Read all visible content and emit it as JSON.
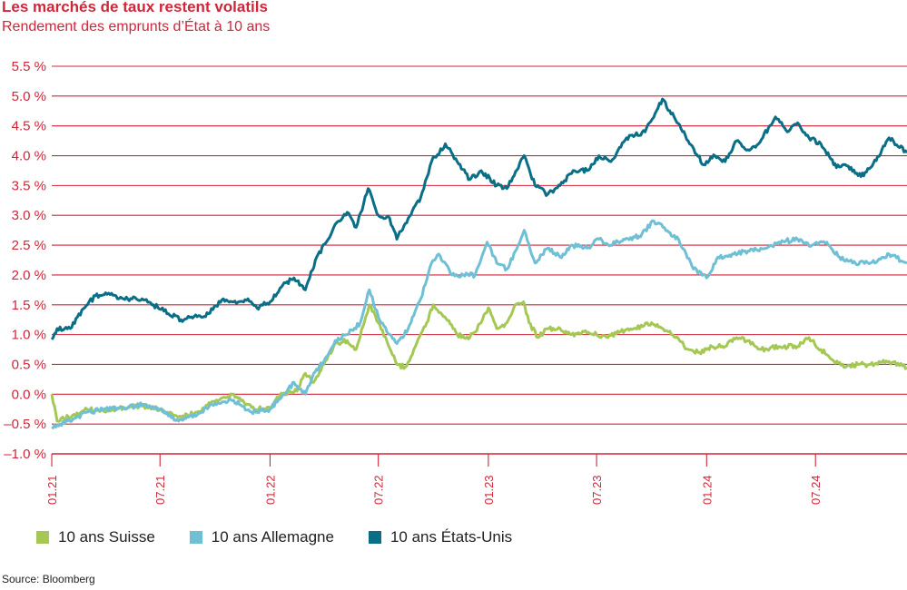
{
  "header": {
    "title": "Les marchés de taux restent volatils",
    "subtitle": "Rendement des emprunts d’État à 10 ans"
  },
  "footer": {
    "source": "Source: Bloomberg"
  },
  "colors": {
    "grid": "#d0263a",
    "axis_text": "#d0263a",
    "swiss": "#a5c854",
    "germany": "#6fc0d4",
    "us": "#0a6f86"
  },
  "chart_data": {
    "type": "line",
    "title": "Les marchés de taux restent volatils",
    "subtitle": "Rendement des emprunts d’État à 10 ans",
    "xlabel": "",
    "ylabel": "",
    "ylim": [
      -1.0,
      5.5
    ],
    "yticks": [
      5.5,
      5.0,
      4.5,
      4.0,
      3.5,
      3.0,
      2.5,
      2.0,
      1.5,
      1.0,
      0.5,
      0.0,
      -0.5,
      -1.0
    ],
    "ytick_labels": [
      "5.5 %",
      "5.0 %",
      "4.5 %",
      "4.0 %",
      "3.5 %",
      "3.0 %",
      "2.5 %",
      "2.0 %",
      "1.5 %",
      "1.0 %",
      "0.5 %",
      "0.0 %",
      "–0.5 %",
      "–1.0 %"
    ],
    "xlim": [
      "2021-01",
      "2024-12"
    ],
    "xticks": [
      "2021-01",
      "2021-07",
      "2022-01",
      "2022-07",
      "2023-01",
      "2023-07",
      "2024-01",
      "2024-07"
    ],
    "xtick_labels": [
      "01.21",
      "07.21",
      "01.22",
      "07.22",
      "01.23",
      "07.23",
      "01.24",
      "07.24"
    ],
    "grid": true,
    "legend_position": "bottom-left",
    "series": [
      {
        "name": "10 ans Suisse",
        "color": "#a5c854",
        "points": [
          [
            "2021-01-01",
            0.0
          ],
          [
            "2021-01-10",
            -0.45
          ],
          [
            "2021-02-05",
            -0.35
          ],
          [
            "2021-03-01",
            -0.25
          ],
          [
            "2021-04-01",
            -0.3
          ],
          [
            "2021-05-01",
            -0.22
          ],
          [
            "2021-06-01",
            -0.2
          ],
          [
            "2021-07-01",
            -0.25
          ],
          [
            "2021-08-01",
            -0.38
          ],
          [
            "2021-09-01",
            -0.3
          ],
          [
            "2021-10-01",
            -0.12
          ],
          [
            "2021-11-01",
            0.0
          ],
          [
            "2021-12-01",
            -0.22
          ],
          [
            "2022-01-01",
            -0.25
          ],
          [
            "2022-01-20",
            0.02
          ],
          [
            "2022-02-15",
            0.05
          ],
          [
            "2022-03-01",
            0.35
          ],
          [
            "2022-03-15",
            0.2
          ],
          [
            "2022-04-01",
            0.5
          ],
          [
            "2022-04-20",
            0.85
          ],
          [
            "2022-05-10",
            0.9
          ],
          [
            "2022-05-25",
            0.75
          ],
          [
            "2022-06-10",
            1.3
          ],
          [
            "2022-06-16",
            1.5
          ],
          [
            "2022-07-01",
            1.2
          ],
          [
            "2022-07-15",
            0.9
          ],
          [
            "2022-08-01",
            0.5
          ],
          [
            "2022-08-15",
            0.45
          ],
          [
            "2022-09-01",
            0.8
          ],
          [
            "2022-09-20",
            1.2
          ],
          [
            "2022-10-01",
            1.5
          ],
          [
            "2022-10-20",
            1.3
          ],
          [
            "2022-11-10",
            1.0
          ],
          [
            "2022-12-01",
            0.95
          ],
          [
            "2022-12-20",
            1.2
          ],
          [
            "2023-01-01",
            1.45
          ],
          [
            "2023-01-15",
            1.1
          ],
          [
            "2023-02-01",
            1.2
          ],
          [
            "2023-02-15",
            1.5
          ],
          [
            "2023-03-01",
            1.55
          ],
          [
            "2023-03-10",
            1.2
          ],
          [
            "2023-03-25",
            0.95
          ],
          [
            "2023-04-10",
            1.1
          ],
          [
            "2023-05-01",
            1.1
          ],
          [
            "2023-05-20",
            1.0
          ],
          [
            "2023-06-10",
            1.05
          ],
          [
            "2023-07-01",
            1.0
          ],
          [
            "2023-07-20",
            0.95
          ],
          [
            "2023-08-10",
            1.05
          ],
          [
            "2023-09-01",
            1.1
          ],
          [
            "2023-10-01",
            1.2
          ],
          [
            "2023-10-20",
            1.1
          ],
          [
            "2023-11-10",
            0.95
          ],
          [
            "2023-12-01",
            0.75
          ],
          [
            "2023-12-20",
            0.7
          ],
          [
            "2024-01-10",
            0.8
          ],
          [
            "2024-02-01",
            0.8
          ],
          [
            "2024-02-20",
            0.95
          ],
          [
            "2024-03-10",
            0.9
          ],
          [
            "2024-04-01",
            0.75
          ],
          [
            "2024-05-01",
            0.8
          ],
          [
            "2024-06-01",
            0.8
          ],
          [
            "2024-06-20",
            0.95
          ],
          [
            "2024-07-10",
            0.75
          ],
          [
            "2024-08-01",
            0.55
          ],
          [
            "2024-08-20",
            0.45
          ],
          [
            "2024-09-10",
            0.5
          ],
          [
            "2024-10-01",
            0.5
          ],
          [
            "2024-11-01",
            0.55
          ],
          [
            "2024-12-01",
            0.45
          ]
        ]
      },
      {
        "name": "10 ans Allemagne",
        "color": "#6fc0d4",
        "points": [
          [
            "2021-01-01",
            -0.55
          ],
          [
            "2021-01-15",
            -0.5
          ],
          [
            "2021-02-10",
            -0.4
          ],
          [
            "2021-03-01",
            -0.3
          ],
          [
            "2021-04-01",
            -0.25
          ],
          [
            "2021-05-01",
            -0.22
          ],
          [
            "2021-06-01",
            -0.18
          ],
          [
            "2021-07-01",
            -0.25
          ],
          [
            "2021-08-01",
            -0.45
          ],
          [
            "2021-09-01",
            -0.35
          ],
          [
            "2021-10-01",
            -0.15
          ],
          [
            "2021-11-01",
            -0.1
          ],
          [
            "2021-12-01",
            -0.3
          ],
          [
            "2022-01-01",
            -0.25
          ],
          [
            "2022-01-20",
            -0.05
          ],
          [
            "2022-02-10",
            0.2
          ],
          [
            "2022-03-01",
            0.0
          ],
          [
            "2022-03-15",
            0.35
          ],
          [
            "2022-04-01",
            0.55
          ],
          [
            "2022-04-20",
            0.9
          ],
          [
            "2022-05-10",
            1.0
          ],
          [
            "2022-06-01",
            1.2
          ],
          [
            "2022-06-16",
            1.75
          ],
          [
            "2022-07-01",
            1.3
          ],
          [
            "2022-07-20",
            1.0
          ],
          [
            "2022-08-01",
            0.85
          ],
          [
            "2022-08-20",
            1.1
          ],
          [
            "2022-09-10",
            1.6
          ],
          [
            "2022-09-28",
            2.2
          ],
          [
            "2022-10-10",
            2.35
          ],
          [
            "2022-11-01",
            2.0
          ],
          [
            "2022-11-20",
            2.0
          ],
          [
            "2022-12-10",
            2.0
          ],
          [
            "2022-12-30",
            2.55
          ],
          [
            "2023-01-15",
            2.2
          ],
          [
            "2023-02-01",
            2.1
          ],
          [
            "2023-02-20",
            2.5
          ],
          [
            "2023-03-02",
            2.75
          ],
          [
            "2023-03-20",
            2.2
          ],
          [
            "2023-04-10",
            2.45
          ],
          [
            "2023-05-01",
            2.3
          ],
          [
            "2023-05-20",
            2.5
          ],
          [
            "2023-06-15",
            2.45
          ],
          [
            "2023-07-05",
            2.6
          ],
          [
            "2023-07-25",
            2.5
          ],
          [
            "2023-08-15",
            2.6
          ],
          [
            "2023-09-10",
            2.65
          ],
          [
            "2023-10-05",
            2.9
          ],
          [
            "2023-10-20",
            2.8
          ],
          [
            "2023-11-15",
            2.6
          ],
          [
            "2023-12-10",
            2.1
          ],
          [
            "2024-01-01",
            1.95
          ],
          [
            "2024-01-20",
            2.3
          ],
          [
            "2024-02-15",
            2.35
          ],
          [
            "2024-03-10",
            2.4
          ],
          [
            "2024-04-10",
            2.45
          ],
          [
            "2024-05-01",
            2.55
          ],
          [
            "2024-06-01",
            2.6
          ],
          [
            "2024-06-25",
            2.5
          ],
          [
            "2024-07-20",
            2.55
          ],
          [
            "2024-08-10",
            2.3
          ],
          [
            "2024-09-01",
            2.2
          ],
          [
            "2024-10-01",
            2.2
          ],
          [
            "2024-11-01",
            2.35
          ],
          [
            "2024-12-01",
            2.2
          ]
        ]
      },
      {
        "name": "10 ans États-Unis",
        "color": "#0a6f86",
        "points": [
          [
            "2021-01-01",
            0.92
          ],
          [
            "2021-01-10",
            1.1
          ],
          [
            "2021-02-01",
            1.1
          ],
          [
            "2021-02-25",
            1.45
          ],
          [
            "2021-03-15",
            1.65
          ],
          [
            "2021-04-01",
            1.7
          ],
          [
            "2021-05-01",
            1.6
          ],
          [
            "2021-06-01",
            1.6
          ],
          [
            "2021-06-20",
            1.5
          ],
          [
            "2021-07-15",
            1.35
          ],
          [
            "2021-08-05",
            1.25
          ],
          [
            "2021-09-01",
            1.3
          ],
          [
            "2021-09-20",
            1.35
          ],
          [
            "2021-10-15",
            1.6
          ],
          [
            "2021-11-01",
            1.55
          ],
          [
            "2021-11-25",
            1.6
          ],
          [
            "2021-12-10",
            1.45
          ],
          [
            "2022-01-01",
            1.55
          ],
          [
            "2022-01-20",
            1.8
          ],
          [
            "2022-02-10",
            1.95
          ],
          [
            "2022-03-01",
            1.75
          ],
          [
            "2022-03-20",
            2.3
          ],
          [
            "2022-04-05",
            2.55
          ],
          [
            "2022-04-25",
            2.9
          ],
          [
            "2022-05-10",
            3.05
          ],
          [
            "2022-05-25",
            2.8
          ],
          [
            "2022-06-14",
            3.45
          ],
          [
            "2022-07-01",
            3.0
          ],
          [
            "2022-07-20",
            2.95
          ],
          [
            "2022-08-01",
            2.6
          ],
          [
            "2022-08-20",
            2.95
          ],
          [
            "2022-09-10",
            3.3
          ],
          [
            "2022-09-28",
            3.9
          ],
          [
            "2022-10-21",
            4.2
          ],
          [
            "2022-11-10",
            3.9
          ],
          [
            "2022-12-01",
            3.6
          ],
          [
            "2022-12-20",
            3.75
          ],
          [
            "2023-01-15",
            3.5
          ],
          [
            "2023-02-01",
            3.45
          ],
          [
            "2023-03-02",
            4.0
          ],
          [
            "2023-03-20",
            3.5
          ],
          [
            "2023-04-10",
            3.35
          ],
          [
            "2023-05-01",
            3.5
          ],
          [
            "2023-05-25",
            3.75
          ],
          [
            "2023-06-15",
            3.75
          ],
          [
            "2023-07-05",
            4.0
          ],
          [
            "2023-07-25",
            3.9
          ],
          [
            "2023-08-20",
            4.3
          ],
          [
            "2023-09-20",
            4.4
          ],
          [
            "2023-10-19",
            4.95
          ],
          [
            "2023-11-10",
            4.6
          ],
          [
            "2023-12-01",
            4.25
          ],
          [
            "2023-12-27",
            3.85
          ],
          [
            "2024-01-15",
            4.0
          ],
          [
            "2024-02-01",
            3.9
          ],
          [
            "2024-02-20",
            4.25
          ],
          [
            "2024-03-10",
            4.1
          ],
          [
            "2024-03-28",
            4.2
          ],
          [
            "2024-04-25",
            4.65
          ],
          [
            "2024-05-15",
            4.4
          ],
          [
            "2024-06-01",
            4.55
          ],
          [
            "2024-06-20",
            4.3
          ],
          [
            "2024-07-10",
            4.2
          ],
          [
            "2024-08-05",
            3.8
          ],
          [
            "2024-08-20",
            3.85
          ],
          [
            "2024-09-15",
            3.65
          ],
          [
            "2024-10-01",
            3.8
          ],
          [
            "2024-10-20",
            4.1
          ],
          [
            "2024-11-01",
            4.3
          ],
          [
            "2024-12-01",
            4.05
          ]
        ]
      }
    ]
  }
}
